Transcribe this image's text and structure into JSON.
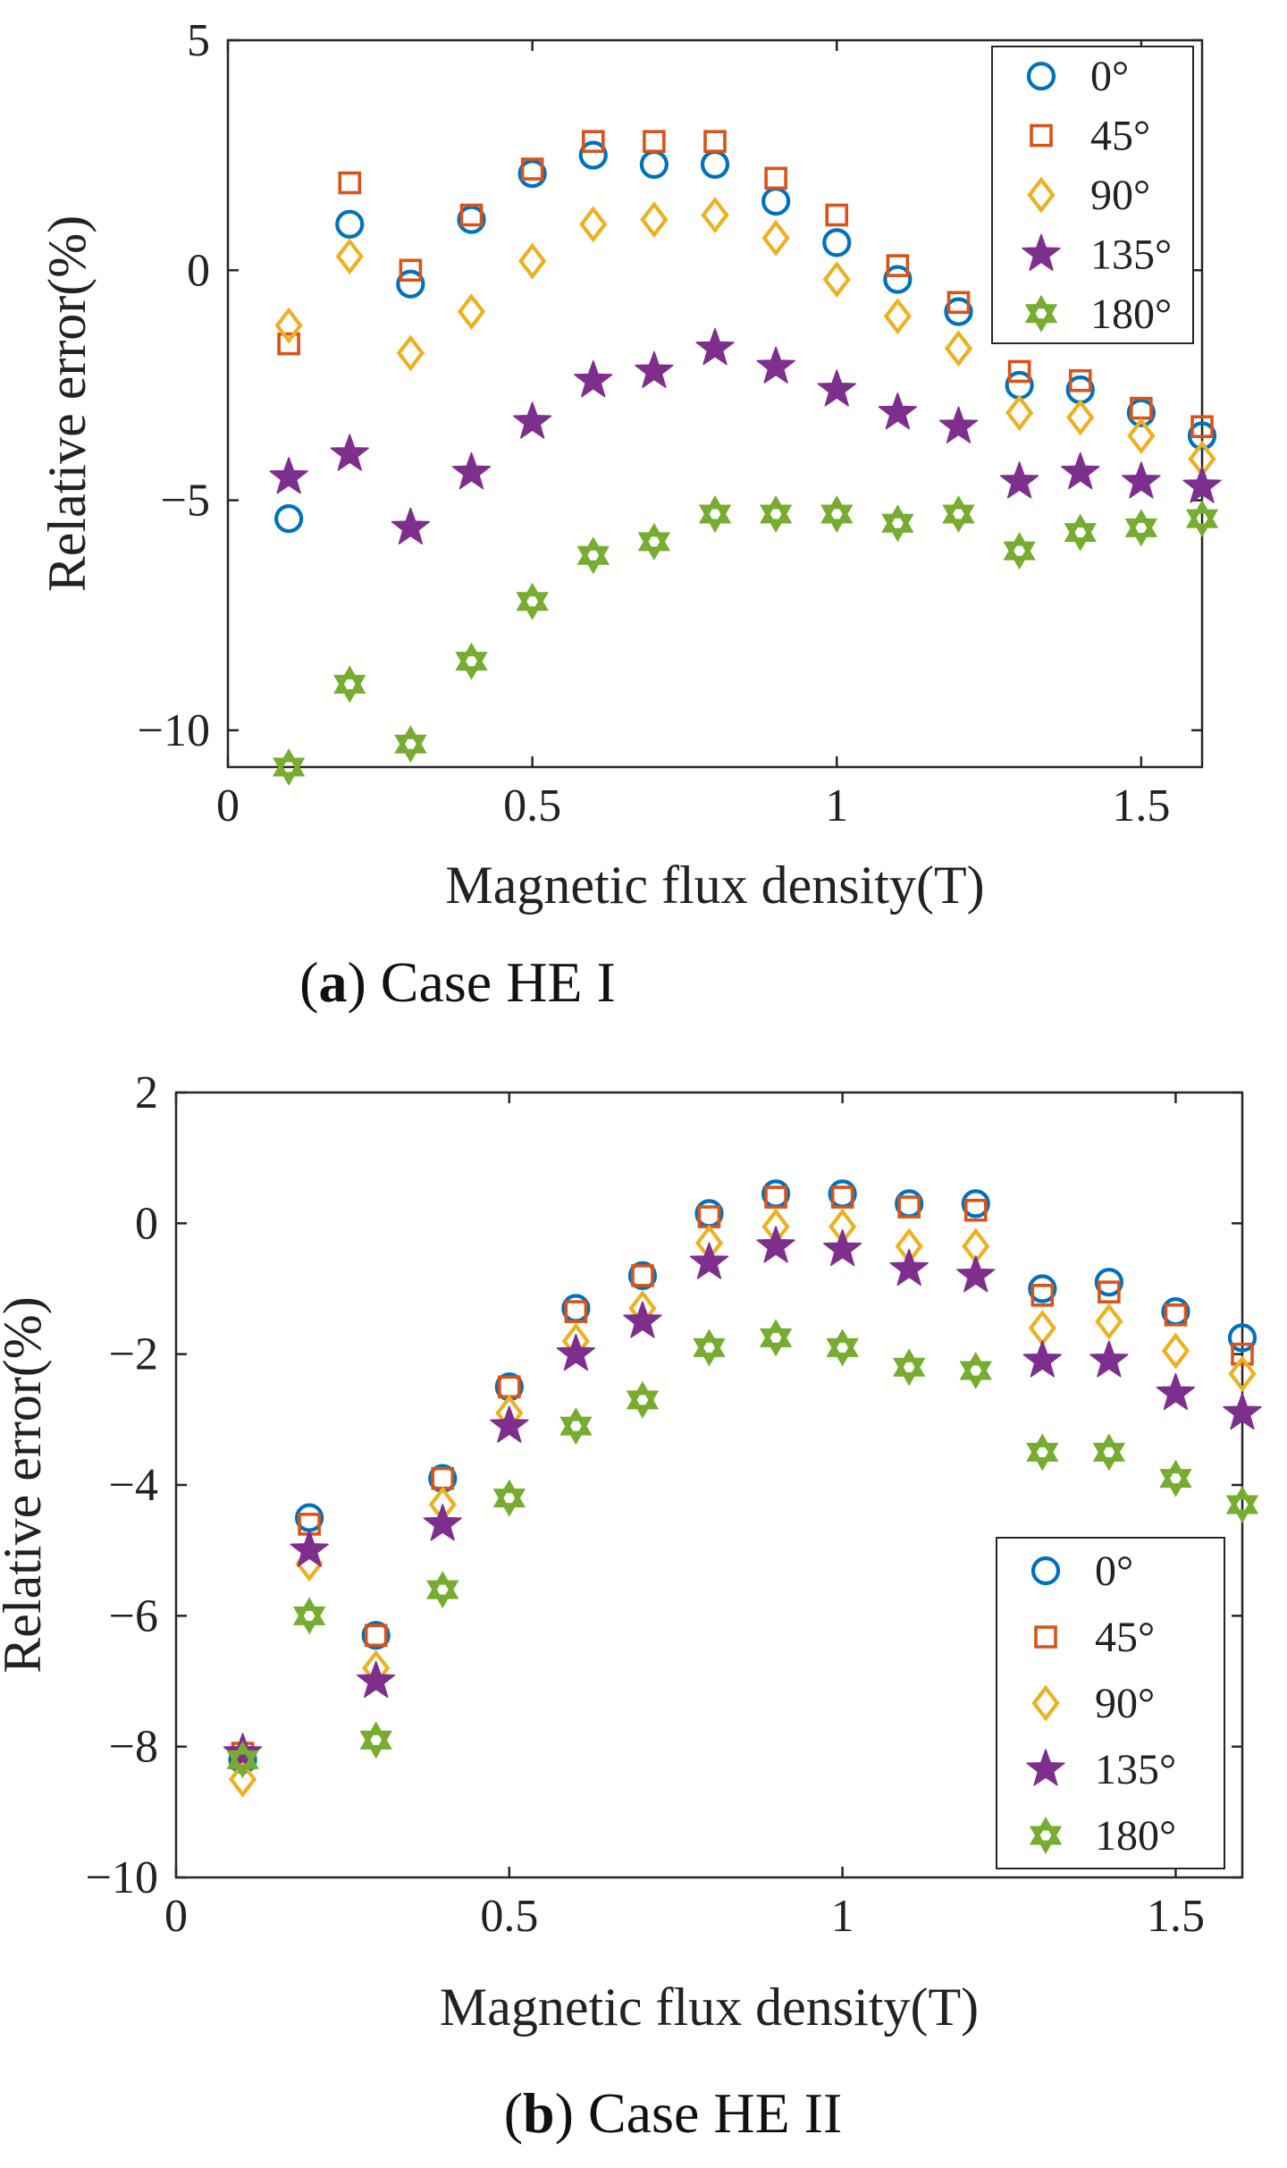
{
  "chart_data": [
    {
      "type": "scatter",
      "panel_label": "a",
      "caption": "Case HE I",
      "xlabel": "Magnetic flux density(T)",
      "ylabel": "Relative error(%)",
      "xlim": [
        0,
        1.6
      ],
      "ylim": [
        -10.8,
        5
      ],
      "xticks": [
        0,
        0.5,
        1,
        1.5
      ],
      "xtick_labels": [
        "0",
        "0.5",
        "1",
        "1.5"
      ],
      "yticks": [
        5,
        0,
        -5,
        -10
      ],
      "ytick_labels": [
        "5",
        "0",
        "−5",
        "−10"
      ],
      "legend_position": "top-right",
      "x": [
        0.1,
        0.2,
        0.3,
        0.4,
        0.5,
        0.6,
        0.7,
        0.8,
        0.9,
        1.0,
        1.1,
        1.2,
        1.3,
        1.4,
        1.5,
        1.6
      ],
      "series": [
        {
          "name": "0°",
          "marker": "circle",
          "color": "#0072BD",
          "values": [
            -5.4,
            1.0,
            -0.3,
            1.1,
            2.1,
            2.5,
            2.3,
            2.3,
            1.5,
            0.6,
            -0.2,
            -0.9,
            -2.5,
            -2.6,
            -3.1,
            -3.6
          ]
        },
        {
          "name": "45°",
          "marker": "square",
          "color": "#D95319",
          "values": [
            -1.6,
            1.9,
            0.0,
            1.2,
            2.2,
            2.8,
            2.8,
            2.8,
            2.0,
            1.2,
            0.1,
            -0.7,
            -2.2,
            -2.4,
            -3.0,
            -3.4
          ]
        },
        {
          "name": "90°",
          "marker": "diamond",
          "color": "#EDB120",
          "values": [
            -1.2,
            0.3,
            -1.8,
            -0.9,
            0.2,
            1.0,
            1.1,
            1.2,
            0.7,
            -0.2,
            -1.0,
            -1.7,
            -3.1,
            -3.2,
            -3.6,
            -4.1
          ]
        },
        {
          "name": "135°",
          "marker": "star",
          "color": "#7E2F8E",
          "values": [
            -4.5,
            -4.0,
            -5.6,
            -4.4,
            -3.3,
            -2.4,
            -2.2,
            -1.7,
            -2.1,
            -2.6,
            -3.1,
            -3.4,
            -4.6,
            -4.4,
            -4.6,
            -4.7
          ]
        },
        {
          "name": "180°",
          "marker": "hexagram",
          "color": "#77AC30",
          "values": [
            -10.8,
            -9.0,
            -10.3,
            -8.5,
            -7.2,
            -6.2,
            -5.9,
            -5.3,
            -5.3,
            -5.3,
            -5.5,
            -5.3,
            -6.1,
            -5.7,
            -5.6,
            -5.4
          ]
        }
      ]
    },
    {
      "type": "scatter",
      "panel_label": "b",
      "caption": "Case HE II",
      "xlabel": "Magnetic flux density(T)",
      "ylabel": "Relative error(%)",
      "xlim": [
        0,
        1.6
      ],
      "ylim": [
        -10,
        2
      ],
      "xticks": [
        0,
        0.5,
        1,
        1.5
      ],
      "xtick_labels": [
        "0",
        "0.5",
        "1",
        "1.5"
      ],
      "yticks": [
        2,
        0,
        -2,
        -4,
        -6,
        -8,
        -10
      ],
      "ytick_labels": [
        "2",
        "0",
        "−2",
        "−4",
        "−6",
        "−8",
        "−10"
      ],
      "legend_position": "bottom-right",
      "x": [
        0.1,
        0.2,
        0.3,
        0.4,
        0.5,
        0.6,
        0.7,
        0.8,
        0.9,
        1.0,
        1.1,
        1.2,
        1.3,
        1.4,
        1.5,
        1.6
      ],
      "series": [
        {
          "name": "0°",
          "marker": "circle",
          "color": "#0072BD",
          "values": [
            -8.2,
            -4.5,
            -6.3,
            -3.9,
            -2.5,
            -1.3,
            -0.8,
            0.15,
            0.45,
            0.45,
            0.3,
            0.3,
            -1.0,
            -0.9,
            -1.35,
            -1.75
          ]
        },
        {
          "name": "45°",
          "marker": "square",
          "color": "#D95319",
          "values": [
            -8.1,
            -4.6,
            -6.3,
            -3.9,
            -2.5,
            -1.35,
            -0.8,
            0.1,
            0.4,
            0.4,
            0.25,
            0.2,
            -1.1,
            -1.05,
            -1.4,
            -2.0
          ]
        },
        {
          "name": "90°",
          "marker": "diamond",
          "color": "#EDB120",
          "values": [
            -8.5,
            -5.2,
            -6.8,
            -4.3,
            -2.9,
            -1.8,
            -1.3,
            -0.3,
            -0.05,
            -0.05,
            -0.35,
            -0.35,
            -1.6,
            -1.5,
            -1.95,
            -2.3
          ]
        },
        {
          "name": "135°",
          "marker": "star",
          "color": "#7E2F8E",
          "values": [
            -8.1,
            -5.0,
            -7.0,
            -4.6,
            -3.1,
            -2.0,
            -1.5,
            -0.6,
            -0.35,
            -0.4,
            -0.7,
            -0.8,
            -2.1,
            -2.1,
            -2.6,
            -2.9
          ]
        },
        {
          "name": "180°",
          "marker": "hexagram",
          "color": "#77AC30",
          "values": [
            -8.2,
            -6.0,
            -7.9,
            -5.6,
            -4.2,
            -3.1,
            -2.7,
            -1.9,
            -1.75,
            -1.9,
            -2.2,
            -2.25,
            -3.5,
            -3.5,
            -3.9,
            -4.3
          ]
        }
      ]
    }
  ]
}
